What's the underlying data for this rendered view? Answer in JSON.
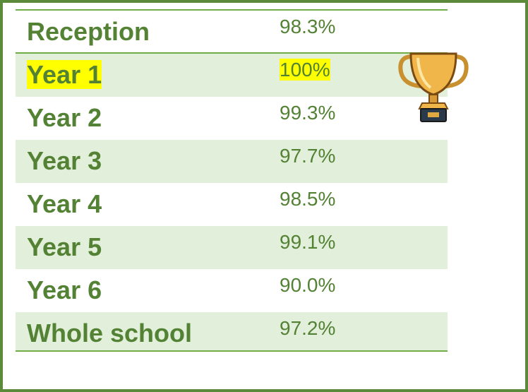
{
  "table": {
    "rows": [
      [
        "Reception",
        "98.3%"
      ],
      [
        "Year 1",
        "100%"
      ],
      [
        "Year 2",
        "99.3%"
      ],
      [
        "Year 3",
        "97.7%"
      ],
      [
        "Year 4",
        "98.5%"
      ],
      [
        "Year 5",
        "99.1%"
      ],
      [
        "Year 6",
        "90.0%"
      ],
      [
        "Whole school",
        "97.2%"
      ]
    ]
  }
}
